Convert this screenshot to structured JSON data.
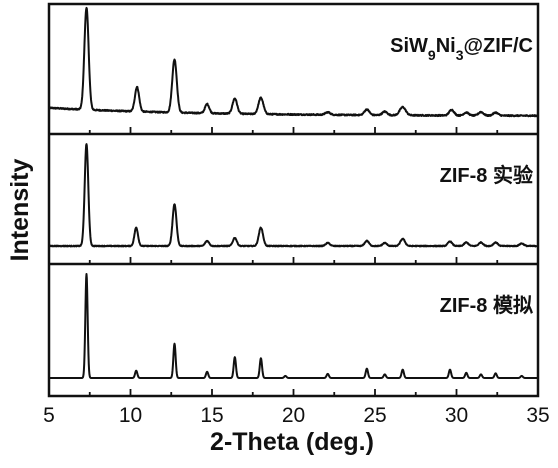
{
  "chart_data": {
    "type": "line",
    "xlabel": "2-Theta (deg.)",
    "ylabel": "Intensity",
    "xlim": [
      5,
      35
    ],
    "xticks": [
      5,
      10,
      15,
      20,
      25,
      30,
      35
    ],
    "grid": false,
    "y_tick_labels": false,
    "line_color": "#111111",
    "panels": [
      {
        "name": "SiW9Ni3@ZIF/C",
        "label_parts": [
          {
            "t": "SiW",
            "sub": false
          },
          {
            "t": "9",
            "sub": true
          },
          {
            "t": "Ni",
            "sub": false
          },
          {
            "t": "3",
            "sub": true
          },
          {
            "t": "@ZIF/C",
            "sub": false
          }
        ],
        "baseline": 0.08,
        "noise": 0.012,
        "peaks": [
          {
            "x": 7.3,
            "h": 1.0,
            "w": 0.13
          },
          {
            "x": 10.4,
            "h": 0.24,
            "w": 0.13
          },
          {
            "x": 12.7,
            "h": 0.52,
            "w": 0.14
          },
          {
            "x": 14.7,
            "h": 0.09,
            "w": 0.13
          },
          {
            "x": 16.4,
            "h": 0.15,
            "w": 0.14
          },
          {
            "x": 18.0,
            "h": 0.16,
            "w": 0.15
          },
          {
            "x": 22.1,
            "h": 0.025,
            "w": 0.15
          },
          {
            "x": 24.5,
            "h": 0.055,
            "w": 0.15
          },
          {
            "x": 25.6,
            "h": 0.035,
            "w": 0.15
          },
          {
            "x": 26.7,
            "h": 0.08,
            "w": 0.18
          },
          {
            "x": 29.7,
            "h": 0.055,
            "w": 0.15
          },
          {
            "x": 30.6,
            "h": 0.03,
            "w": 0.15
          },
          {
            "x": 31.5,
            "h": 0.035,
            "w": 0.15
          },
          {
            "x": 32.4,
            "h": 0.03,
            "w": 0.15
          }
        ]
      },
      {
        "name": "ZIF-8 实验",
        "label_parts": [
          {
            "t": "ZIF-8 实验",
            "sub": false
          }
        ],
        "baseline": 0.0,
        "noise": 0.008,
        "peaks": [
          {
            "x": 7.3,
            "h": 1.0,
            "w": 0.11
          },
          {
            "x": 10.35,
            "h": 0.18,
            "w": 0.11
          },
          {
            "x": 12.7,
            "h": 0.41,
            "w": 0.12
          },
          {
            "x": 14.7,
            "h": 0.05,
            "w": 0.12
          },
          {
            "x": 16.4,
            "h": 0.08,
            "w": 0.12
          },
          {
            "x": 18.0,
            "h": 0.18,
            "w": 0.13
          },
          {
            "x": 22.1,
            "h": 0.03,
            "w": 0.13
          },
          {
            "x": 24.5,
            "h": 0.05,
            "w": 0.13
          },
          {
            "x": 25.6,
            "h": 0.03,
            "w": 0.13
          },
          {
            "x": 26.7,
            "h": 0.07,
            "w": 0.14
          },
          {
            "x": 29.6,
            "h": 0.045,
            "w": 0.13
          },
          {
            "x": 30.6,
            "h": 0.035,
            "w": 0.13
          },
          {
            "x": 31.5,
            "h": 0.035,
            "w": 0.13
          },
          {
            "x": 32.4,
            "h": 0.035,
            "w": 0.13
          },
          {
            "x": 34.0,
            "h": 0.025,
            "w": 0.13
          }
        ]
      },
      {
        "name": "ZIF-8 模拟",
        "label_parts": [
          {
            "t": "ZIF-8 模拟",
            "sub": false
          }
        ],
        "baseline": 0.0,
        "noise": 0.0,
        "peaks": [
          {
            "x": 7.3,
            "h": 1.0,
            "w": 0.07
          },
          {
            "x": 10.35,
            "h": 0.07,
            "w": 0.07
          },
          {
            "x": 12.7,
            "h": 0.33,
            "w": 0.07
          },
          {
            "x": 14.7,
            "h": 0.06,
            "w": 0.07
          },
          {
            "x": 16.4,
            "h": 0.2,
            "w": 0.07
          },
          {
            "x": 18.0,
            "h": 0.19,
            "w": 0.07
          },
          {
            "x": 19.5,
            "h": 0.02,
            "w": 0.07
          },
          {
            "x": 22.1,
            "h": 0.04,
            "w": 0.07
          },
          {
            "x": 24.5,
            "h": 0.09,
            "w": 0.07
          },
          {
            "x": 25.6,
            "h": 0.035,
            "w": 0.07
          },
          {
            "x": 26.7,
            "h": 0.08,
            "w": 0.07
          },
          {
            "x": 29.6,
            "h": 0.08,
            "w": 0.07
          },
          {
            "x": 30.6,
            "h": 0.05,
            "w": 0.07
          },
          {
            "x": 31.5,
            "h": 0.035,
            "w": 0.07
          },
          {
            "x": 32.4,
            "h": 0.045,
            "w": 0.07
          },
          {
            "x": 34.0,
            "h": 0.02,
            "w": 0.07
          }
        ]
      }
    ]
  }
}
